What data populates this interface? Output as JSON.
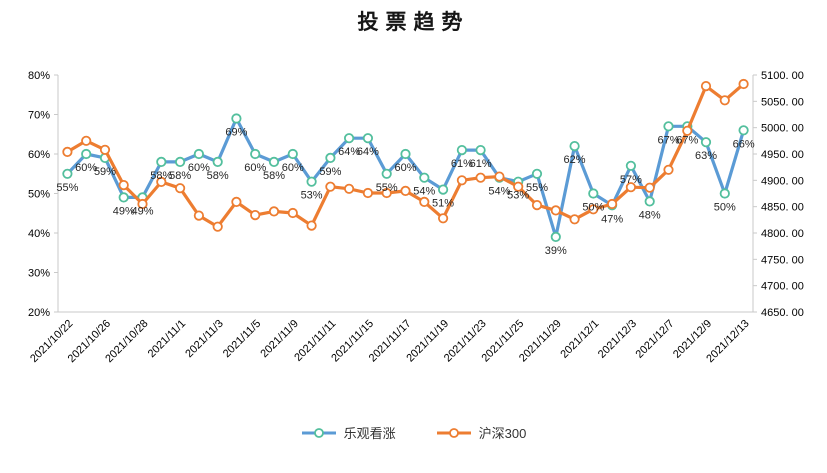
{
  "title": "投票趋势",
  "legend": {
    "items": [
      {
        "label": "乐观看涨",
        "line_color": "#5B9BD5",
        "marker_ring": "#53BF9D"
      },
      {
        "label": "沪深300",
        "line_color": "#ED7D31",
        "marker_ring": "#ED7D31"
      }
    ]
  },
  "colors": {
    "bullish_line": "#5B9BD5",
    "bullish_marker_ring": "#53BF9D",
    "index_line": "#ED7D31",
    "index_marker_ring": "#ED7D31",
    "axis_line": "#C9C9C9",
    "tick_text": "#000000",
    "data_label_text": "#262626",
    "background": "#FFFFFF"
  },
  "chart_data": {
    "type": "line",
    "title": "投票趋势",
    "n_points": 37,
    "x_label_every": 2,
    "x_tick_labels": [
      "2021/10/22",
      "2021/10/26",
      "2021/10/28",
      "2021/11/1",
      "2021/11/3",
      "2021/11/5",
      "2021/11/9",
      "2021/11/11",
      "2021/11/15",
      "2021/11/17",
      "2021/11/19",
      "2021/11/23",
      "2021/11/25",
      "2021/11/29",
      "2021/12/1",
      "2021/12/3",
      "2021/12/7",
      "2021/12/9",
      "2021/12/13"
    ],
    "series": [
      {
        "name": "乐观看涨",
        "axis": "left",
        "unit": "%",
        "color": "#5B9BD5",
        "marker_ring": "#53BF9D",
        "labels_shown": true,
        "values": [
          55,
          60,
          59,
          49,
          49,
          58,
          58,
          60,
          58,
          69,
          60,
          58,
          60,
          53,
          59,
          64,
          64,
          55,
          60,
          54,
          51,
          61,
          61,
          54,
          53,
          55,
          39,
          62,
          50,
          47,
          57,
          48,
          67,
          67,
          63,
          50,
          66
        ]
      },
      {
        "name": "沪深300",
        "axis": "right",
        "unit": "",
        "color": "#ED7D31",
        "marker_ring": "#ED7D31",
        "labels_shown": false,
        "values": [
          4954,
          4975,
          4958,
          4891,
          4855,
          4897,
          4885,
          4833,
          4812,
          4859,
          4834,
          4841,
          4838,
          4814,
          4888,
          4884,
          4876,
          4876,
          4880,
          4859,
          4828,
          4900,
          4905,
          4907,
          4888,
          4853,
          4843,
          4826,
          4845,
          4855,
          4887,
          4886,
          4920,
          4994,
          5079,
          5052,
          5083
        ]
      }
    ],
    "left_axis": {
      "min": 20,
      "max": 80,
      "ticks": [
        "80%",
        "70%",
        "60%",
        "50%",
        "40%",
        "30%",
        "20%"
      ]
    },
    "right_axis": {
      "min": 4650,
      "max": 5100,
      "ticks": [
        "5100. 00",
        "5050. 00",
        "5000. 00",
        "4950. 00",
        "4900. 00",
        "4850. 00",
        "4800. 00",
        "4750. 00",
        "4700. 00",
        "4650. 00"
      ]
    },
    "grid": false,
    "legend_position": "bottom"
  }
}
